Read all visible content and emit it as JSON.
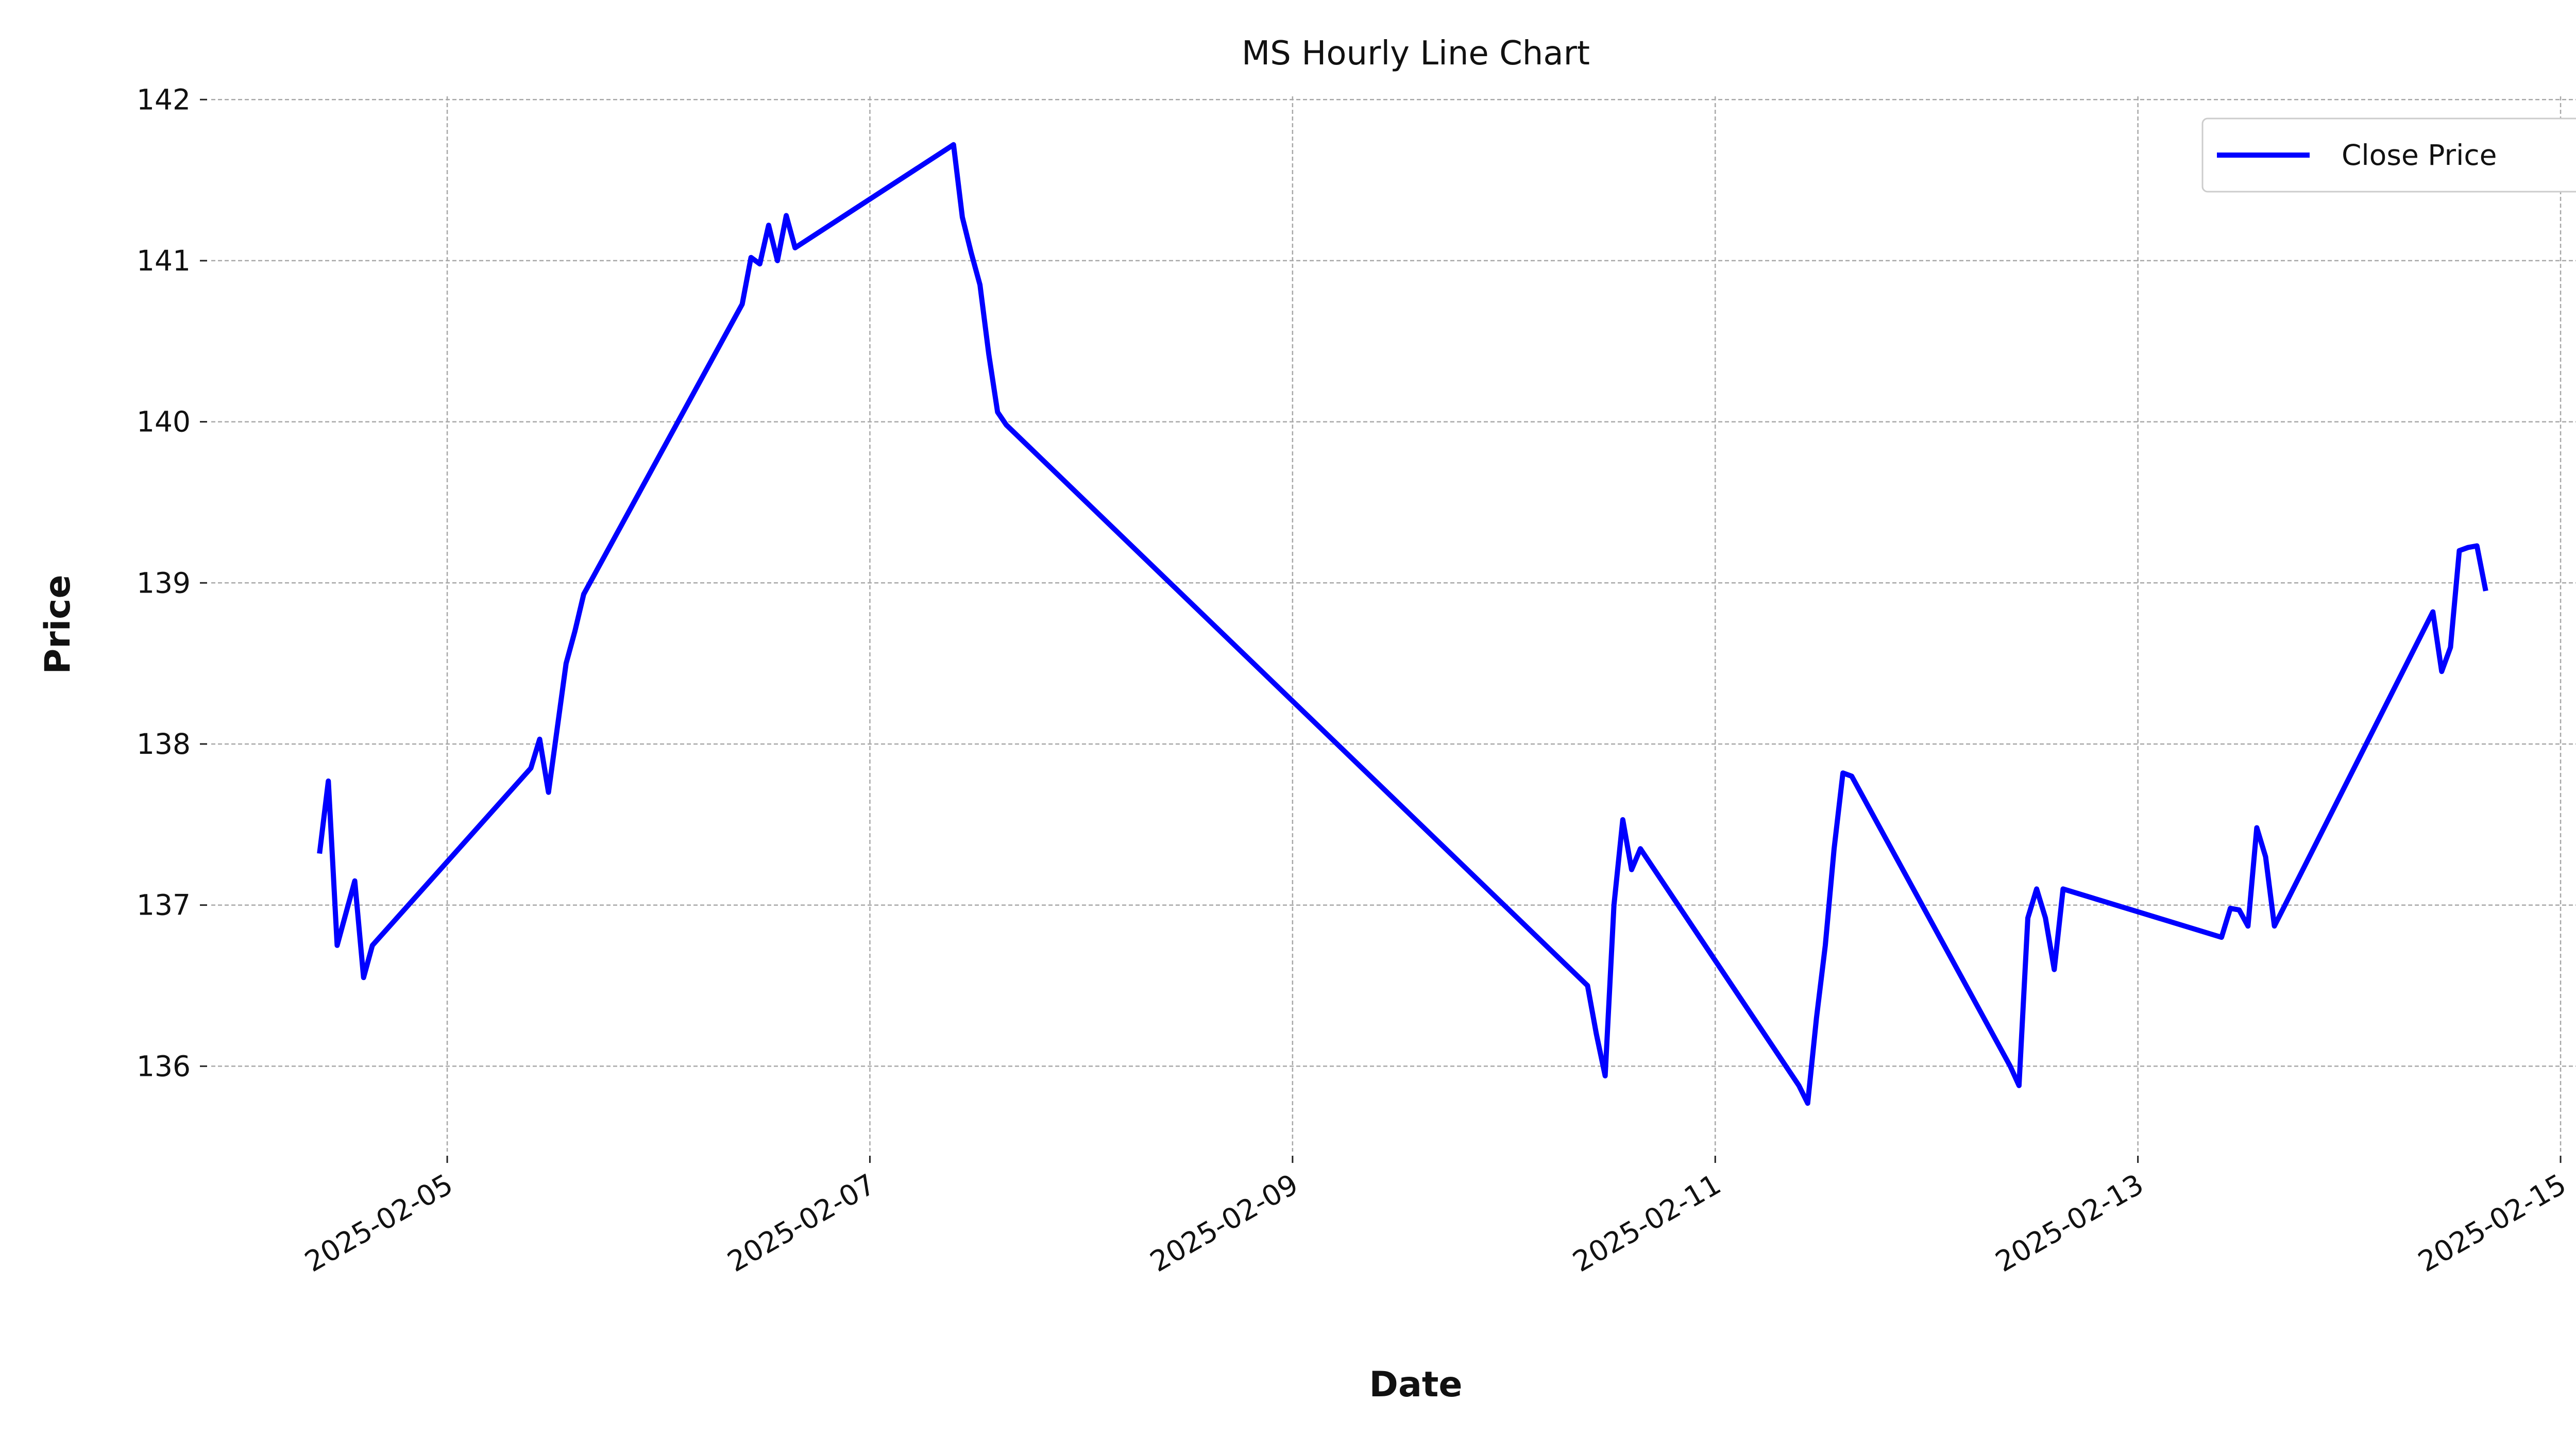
{
  "chart_data": {
    "type": "line",
    "title": "MS Hourly Line Chart",
    "x_label": "Date",
    "y_label": "Price",
    "x": [
      "2025-02-04T09:30",
      "2025-02-04T10:30",
      "2025-02-04T11:30",
      "2025-02-04T12:30",
      "2025-02-04T13:30",
      "2025-02-04T14:30",
      "2025-02-04T15:30",
      "2025-02-05T09:30",
      "2025-02-05T10:30",
      "2025-02-05T11:30",
      "2025-02-05T12:30",
      "2025-02-05T13:30",
      "2025-02-05T14:30",
      "2025-02-05T15:30",
      "2025-02-06T09:30",
      "2025-02-06T10:30",
      "2025-02-06T11:30",
      "2025-02-06T12:30",
      "2025-02-06T13:30",
      "2025-02-06T14:30",
      "2025-02-06T15:30",
      "2025-02-07T09:30",
      "2025-02-07T10:30",
      "2025-02-07T11:30",
      "2025-02-07T12:30",
      "2025-02-07T13:30",
      "2025-02-07T14:30",
      "2025-02-07T15:30",
      "2025-02-10T09:30",
      "2025-02-10T10:30",
      "2025-02-10T11:30",
      "2025-02-10T12:30",
      "2025-02-10T13:30",
      "2025-02-10T14:30",
      "2025-02-10T15:30",
      "2025-02-11T09:30",
      "2025-02-11T10:30",
      "2025-02-11T11:30",
      "2025-02-11T12:30",
      "2025-02-11T13:30",
      "2025-02-11T14:30",
      "2025-02-11T15:30",
      "2025-02-12T09:30",
      "2025-02-12T10:30",
      "2025-02-12T11:30",
      "2025-02-12T12:30",
      "2025-02-12T13:30",
      "2025-02-12T14:30",
      "2025-02-12T15:30",
      "2025-02-13T09:30",
      "2025-02-13T10:30",
      "2025-02-13T11:30",
      "2025-02-13T12:30",
      "2025-02-13T13:30",
      "2025-02-13T14:30",
      "2025-02-13T15:30",
      "2025-02-14T09:30",
      "2025-02-14T10:30",
      "2025-02-14T11:30",
      "2025-02-14T12:30",
      "2025-02-14T13:30",
      "2025-02-14T14:30",
      "2025-02-14T15:30"
    ],
    "series": [
      {
        "name": "Close Price",
        "color": "#0000ff",
        "values": [
          137.32,
          137.77,
          136.75,
          136.95,
          137.15,
          136.55,
          136.75,
          137.85,
          138.03,
          137.7,
          138.1,
          138.5,
          138.7,
          138.93,
          140.73,
          141.02,
          140.98,
          141.22,
          141.0,
          141.28,
          141.08,
          141.72,
          141.27,
          141.05,
          140.85,
          140.42,
          140.06,
          139.98,
          136.5,
          136.2,
          135.94,
          137.0,
          137.53,
          137.22,
          137.35,
          135.88,
          135.77,
          136.3,
          136.75,
          137.35,
          137.82,
          137.8,
          136.0,
          135.88,
          136.92,
          137.1,
          136.92,
          136.6,
          137.1,
          136.8,
          136.98,
          136.97,
          136.87,
          137.48,
          137.3,
          136.87,
          138.82,
          138.45,
          138.6,
          139.2,
          139.22,
          139.23,
          138.95
        ]
      }
    ],
    "xlim": [
      "2025-02-03T21:12",
      "2025-02-15T03:48"
    ],
    "xticks": [
      "2025-02-05",
      "2025-02-07",
      "2025-02-09",
      "2025-02-11",
      "2025-02-13",
      "2025-02-15"
    ],
    "ylim": [
      135.47,
      142.02
    ],
    "yticks": [
      136,
      137,
      138,
      139,
      140,
      141,
      142
    ],
    "grid": true,
    "legend": "upper right"
  }
}
